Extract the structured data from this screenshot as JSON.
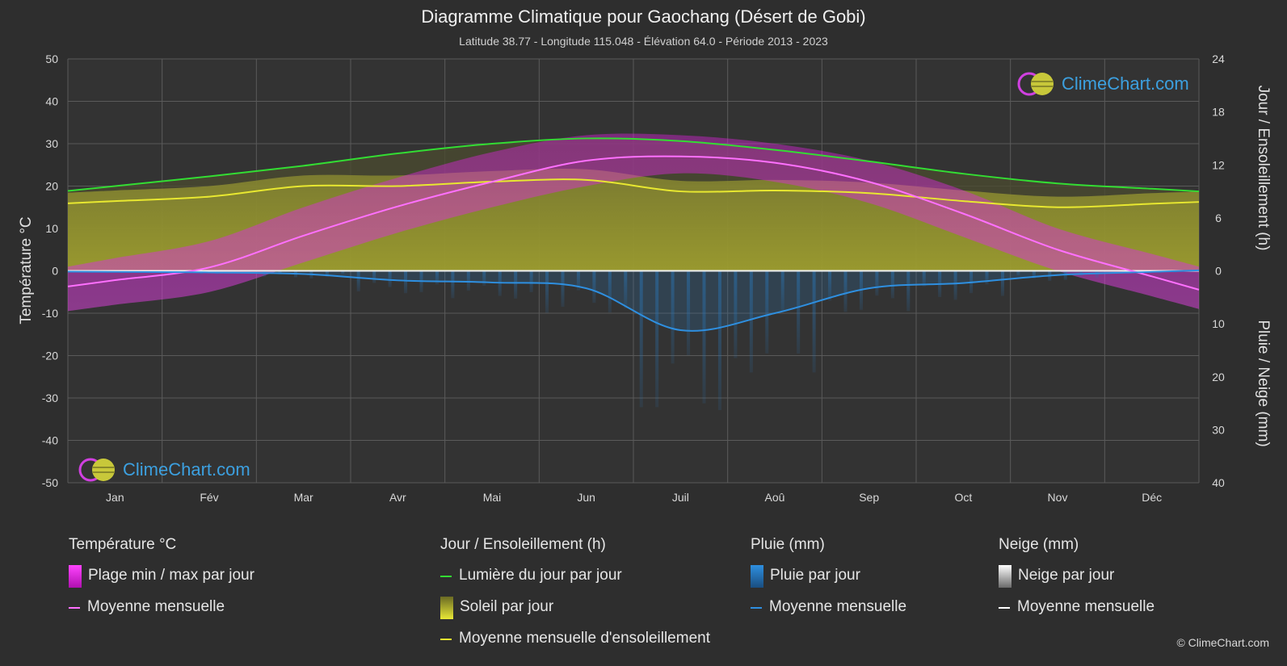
{
  "title": "Diagramme Climatique pour Gaochang (Désert de Gobi)",
  "subtitle": "Latitude 38.77 - Longitude 115.048 - Élévation 64.0 - Période 2013 - 2023",
  "brand": "ClimeChart.com",
  "credit": "© ClimeChart.com",
  "colors": {
    "background": "#2e2e2e",
    "daylight": "#33dd33",
    "sunshine_mean": "#e8e830",
    "temp_mean": "#ff70ff",
    "rain_mean": "#2e8fe0",
    "temp_range": "#dd22dd",
    "sunshine_fill": "#b5b52c",
    "rain_fill": "#2a6ea8",
    "snow_fill": "#8a8a8a"
  },
  "chart_data": {
    "type": "line",
    "x": [
      "Jan",
      "Fév",
      "Mar",
      "Avr",
      "Mai",
      "Jun",
      "Juil",
      "Aoû",
      "Sep",
      "Oct",
      "Nov",
      "Déc"
    ],
    "y_left_label": "Température °C",
    "y_right_top_label": "Jour / Ensoleillement (h)",
    "y_right_bottom_label": "Pluie / Neige (mm)",
    "y_left_ticks": [
      "50",
      "40",
      "30",
      "20",
      "10",
      "0",
      "-10",
      "-20",
      "-30",
      "-40",
      "-50"
    ],
    "y_right_top_ticks": [
      "24",
      "18",
      "12",
      "6",
      "0"
    ],
    "y_right_bottom_ticks": [
      "10",
      "20",
      "30",
      "40"
    ],
    "ylim_left": [
      -50,
      50
    ],
    "ylim_sun": [
      0,
      24
    ],
    "ylim_rain": [
      0,
      40
    ],
    "grid": true,
    "series": [
      {
        "name": "Lumière du jour par jour",
        "unit": "h",
        "values": [
          9.6,
          10.7,
          11.9,
          13.3,
          14.4,
          15.0,
          14.7,
          13.7,
          12.4,
          11.0,
          9.9,
          9.3
        ]
      },
      {
        "name": "Moyenne mensuelle d'ensoleillement",
        "unit": "h",
        "values": [
          7.9,
          8.4,
          9.6,
          9.6,
          10.1,
          10.3,
          9.0,
          9.1,
          8.8,
          7.9,
          7.2,
          7.6
        ]
      },
      {
        "name": "Moyenne mensuelle",
        "group": "Température °C",
        "unit": "°C",
        "values": [
          -2.2,
          0.8,
          8.3,
          15.2,
          21.0,
          26.0,
          27.0,
          25.5,
          21.0,
          13.5,
          5.0,
          -1.3
        ]
      },
      {
        "name": "Moyenne mensuelle",
        "group": "Pluie (mm)",
        "unit": "mm",
        "values": [
          0.2,
          0.3,
          0.6,
          1.8,
          2.2,
          3.3,
          11.2,
          8.0,
          3.3,
          2.3,
          0.8,
          0.2
        ]
      },
      {
        "name": "Temp max",
        "unit": "°C",
        "values": [
          3.0,
          7.0,
          15.0,
          22.0,
          28.0,
          32.0,
          32.0,
          30.0,
          26.0,
          19.0,
          10.0,
          4.0
        ]
      },
      {
        "name": "Temp min",
        "unit": "°C",
        "values": [
          -8.0,
          -5.0,
          2.0,
          9.0,
          15.0,
          20.0,
          23.0,
          21.0,
          16.0,
          8.0,
          0.0,
          -6.0
        ]
      }
    ]
  },
  "legend": {
    "temp": {
      "header": "Température °C",
      "items": [
        "Plage min / max par jour",
        "Moyenne mensuelle"
      ]
    },
    "sun": {
      "header": "Jour / Ensoleillement (h)",
      "items": [
        "Lumière du jour par jour",
        "Soleil par jour",
        "Moyenne mensuelle d'ensoleillement"
      ]
    },
    "rain": {
      "header": "Pluie (mm)",
      "items": [
        "Pluie par jour",
        "Moyenne mensuelle"
      ]
    },
    "snow": {
      "header": "Neige (mm)",
      "items": [
        "Neige par jour",
        "Moyenne mensuelle"
      ]
    }
  }
}
